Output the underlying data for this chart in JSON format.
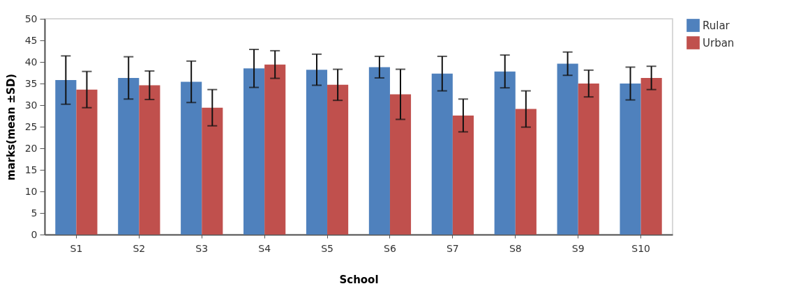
{
  "chart_data": {
    "type": "bar",
    "xlabel": "School",
    "ylabel": "marks(mean ±SD)",
    "categories": [
      "S1",
      "S2",
      "S3",
      "S4",
      "S5",
      "S6",
      "S7",
      "S8",
      "S9",
      "S10"
    ],
    "series": [
      {
        "name": "Rular",
        "color": "#4f81bd",
        "values": [
          35.8,
          36.3,
          35.4,
          38.5,
          38.2,
          38.8,
          37.3,
          37.8,
          39.6,
          35.0
        ],
        "errors": [
          5.6,
          4.9,
          4.8,
          4.4,
          3.6,
          2.5,
          4.0,
          3.8,
          2.7,
          3.8
        ]
      },
      {
        "name": "Urban",
        "color": "#c0504d",
        "values": [
          33.6,
          34.6,
          29.4,
          39.4,
          34.7,
          32.5,
          27.6,
          29.1,
          35.0,
          36.3
        ],
        "errors": [
          4.2,
          3.3,
          4.2,
          3.2,
          3.6,
          5.8,
          3.8,
          4.2,
          3.1,
          2.7
        ]
      }
    ],
    "ylim": [
      0,
      50
    ],
    "yticks": [
      0,
      5,
      10,
      15,
      20,
      25,
      30,
      35,
      40,
      45,
      50
    ],
    "legend": "right"
  }
}
